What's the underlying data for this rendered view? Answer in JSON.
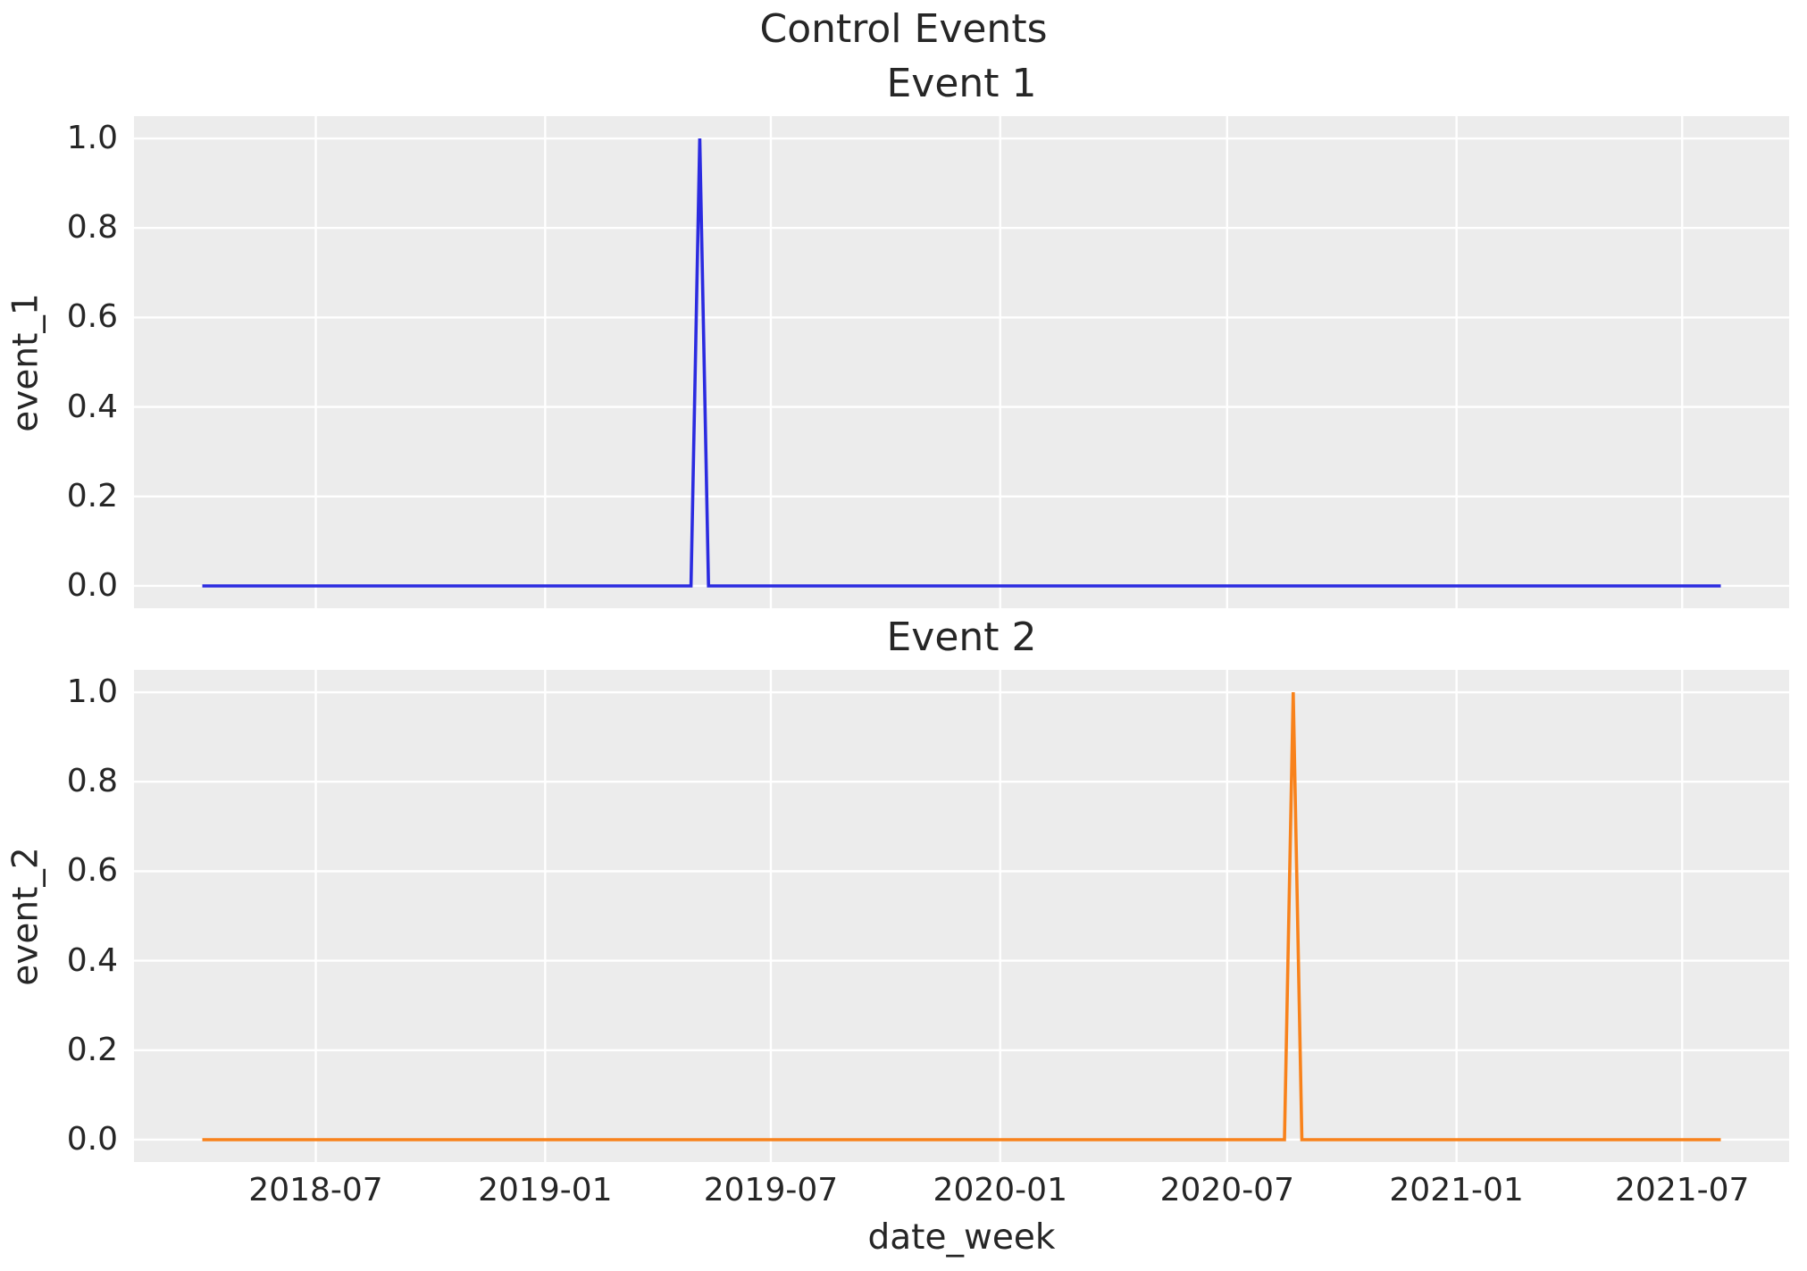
{
  "figure": {
    "suptitle": "Control Events",
    "xlabel": "date_week",
    "background_color": "#ffffff",
    "axes_background_color": "#ececec",
    "grid_color": "#ffffff",
    "text_color": "#262626"
  },
  "chart_data": [
    {
      "type": "line",
      "title": "Event 1",
      "ylabel": "event_1",
      "series_name": "event_1",
      "color": "#2b2be0",
      "frequency": "weekly",
      "x_start": "2018-04-01",
      "x_end": "2021-08-01",
      "baseline_value": 0.0,
      "spike": {
        "date": "2019-05-05",
        "value": 1.0,
        "ramp_days": 7
      },
      "ylim": [
        -0.05,
        1.05
      ],
      "y_tick_labels": [
        "1.0",
        "0.8",
        "0.6",
        "0.4",
        "0.2",
        "0.0"
      ],
      "x_tick_labels": [
        "2018-07",
        "2019-01",
        "2019-07",
        "2020-01",
        "2020-07",
        "2021-01",
        "2021-07"
      ],
      "show_x_tick_labels": false,
      "grid": true,
      "legend": "none"
    },
    {
      "type": "line",
      "title": "Event 2",
      "ylabel": "event_2",
      "series_name": "event_2",
      "color": "#f8821b",
      "frequency": "weekly",
      "x_start": "2018-04-01",
      "x_end": "2021-08-01",
      "baseline_value": 0.0,
      "spike": {
        "date": "2020-08-23",
        "value": 1.0,
        "ramp_days": 7
      },
      "ylim": [
        -0.05,
        1.05
      ],
      "y_tick_labels": [
        "1.0",
        "0.8",
        "0.6",
        "0.4",
        "0.2",
        "0.0"
      ],
      "x_tick_labels": [
        "2018-07",
        "2019-01",
        "2019-07",
        "2020-01",
        "2020-07",
        "2021-01",
        "2021-07"
      ],
      "show_x_tick_labels": true,
      "grid": true,
      "legend": "none"
    }
  ]
}
